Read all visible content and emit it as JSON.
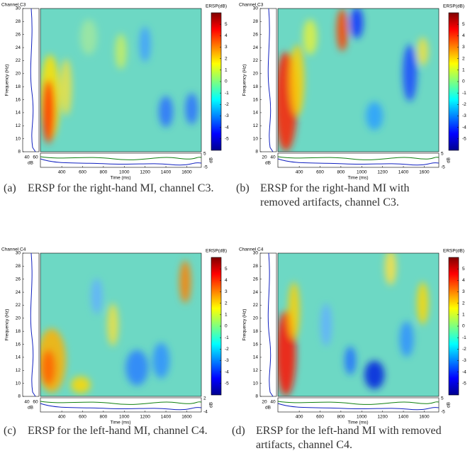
{
  "panels": [
    {
      "channel": "Channel C3",
      "colorbar_title": "ERSP(dB)",
      "ylabel": "Frequency (Hz)",
      "xlabel": "Time (ms)",
      "db_label": "dB",
      "xlim": [
        195,
        1740
      ],
      "xticks": [
        400,
        600,
        800,
        1000,
        1200,
        1400,
        1600
      ],
      "ylim": [
        8,
        30
      ],
      "yticks": [
        8,
        10,
        12,
        14,
        16,
        18,
        20,
        22,
        24,
        26,
        28,
        30
      ],
      "clim": [
        -6,
        6
      ],
      "cticks": [
        5,
        4,
        3,
        2,
        1,
        0,
        -1,
        -2,
        -3,
        -4,
        -5
      ],
      "baseline_ticks": [
        40,
        60
      ],
      "bottom_ticks": [
        5,
        -5
      ],
      "label": "(a)",
      "caption": "ERSP for the right-hand MI, channel C3."
    },
    {
      "channel": "Channel C3",
      "colorbar_title": "ERSP(dB)",
      "ylabel": "Frequency (Hz)",
      "xlabel": "Time (ms)",
      "db_label": "dB",
      "xlim": [
        195,
        1740
      ],
      "xticks": [
        400,
        600,
        800,
        1000,
        1200,
        1400,
        1600
      ],
      "ylim": [
        8,
        30
      ],
      "yticks": [
        8,
        10,
        12,
        14,
        16,
        18,
        20,
        22,
        24,
        26,
        28,
        30
      ],
      "clim": [
        -6,
        6
      ],
      "cticks": [
        5,
        4,
        3,
        2,
        1,
        0,
        -1,
        -2,
        -3,
        -4,
        -5
      ],
      "baseline_ticks": [
        20,
        40
      ],
      "bottom_ticks": [
        5,
        -5
      ],
      "label": "(b)",
      "caption": "ERSP for the right-hand MI with removed artifacts, channel C3."
    },
    {
      "channel": "Channel C4",
      "colorbar_title": "ERSP(dB)",
      "ylabel": "Frequency (Hz)",
      "xlabel": "Time (ms)",
      "db_label": "dB",
      "xlim": [
        195,
        1740
      ],
      "xticks": [
        400,
        600,
        800,
        1000,
        1200,
        1400,
        1600
      ],
      "ylim": [
        8,
        30
      ],
      "yticks": [
        8,
        10,
        12,
        14,
        16,
        18,
        20,
        22,
        24,
        26,
        28,
        30
      ],
      "clim": [
        -6,
        6
      ],
      "cticks": [
        5,
        4,
        3,
        2,
        1,
        0,
        -1,
        -2,
        -3,
        -4,
        -5
      ],
      "baseline_ticks": [
        40,
        60
      ],
      "bottom_ticks": [
        2,
        -4
      ],
      "label": "(c)",
      "caption": "ERSP for the left-hand MI, channel C4."
    },
    {
      "channel": "Channel C4",
      "colorbar_title": "ERSP(dB)",
      "ylabel": "Frequency (Hz)",
      "xlabel": "Time (ms)",
      "db_label": "dB",
      "xlim": [
        195,
        1740
      ],
      "xticks": [
        400,
        600,
        800,
        1000,
        1200,
        1400,
        1600
      ],
      "ylim": [
        8,
        30
      ],
      "yticks": [
        8,
        10,
        12,
        14,
        16,
        18,
        20,
        22,
        24,
        26,
        28,
        30
      ],
      "clim": [
        -6,
        6
      ],
      "cticks": [
        5,
        4,
        3,
        2,
        1,
        0,
        -1,
        -2,
        -3,
        -4,
        -5
      ],
      "baseline_ticks": [
        20,
        40
      ],
      "bottom_ticks": [
        5,
        -5
      ],
      "label": "(d)",
      "caption": "ERSP for the left-hand MI with removed artifacts, channel C4."
    }
  ]
}
